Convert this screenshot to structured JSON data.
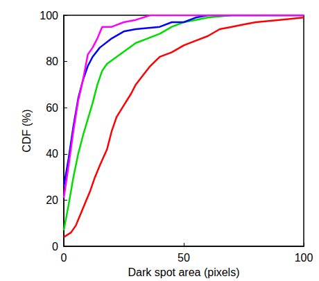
{
  "chart_data": {
    "type": "line",
    "x_label": "Dark spot area (pixels)",
    "y_label": "CDF (%)",
    "xlim": [
      0,
      100
    ],
    "xticks": [
      0,
      50,
      100
    ],
    "ylim": [
      0,
      100
    ],
    "yticks": [
      0,
      20,
      40,
      60,
      80,
      100
    ],
    "grid": false,
    "marker": "none",
    "line_style": "solid",
    "series": [
      {
        "color": "#ff0000",
        "x": [
          0,
          3,
          5,
          7,
          9,
          11,
          13,
          15,
          18,
          20,
          22,
          25,
          28,
          30,
          33,
          36,
          40,
          45,
          50,
          55,
          60,
          65,
          70,
          75,
          80,
          90,
          100
        ],
        "values": [
          4,
          6,
          9,
          14,
          19,
          24,
          30,
          35,
          42,
          50,
          56,
          61,
          66,
          70,
          74,
          78,
          82,
          84,
          87,
          89,
          91,
          94,
          95,
          96,
          97,
          98,
          99
        ]
      },
      {
        "color": "#00dd00",
        "x": [
          0,
          2,
          4,
          6,
          8,
          10,
          12,
          14,
          16,
          18,
          22,
          26,
          30,
          35,
          40,
          45,
          50,
          55,
          60,
          70,
          100
        ],
        "values": [
          7,
          18,
          30,
          40,
          48,
          55,
          62,
          70,
          76,
          79,
          82,
          85,
          88,
          90,
          92,
          95,
          97,
          98,
          99,
          100,
          100
        ]
      },
      {
        "color": "#0000ff",
        "x": [
          0,
          2,
          4,
          6,
          8,
          10,
          12,
          15,
          20,
          25,
          30,
          40,
          45,
          50,
          55,
          60,
          100
        ],
        "values": [
          26,
          38,
          52,
          64,
          72,
          78,
          82,
          86,
          90,
          93,
          94,
          95,
          97,
          97,
          99,
          100,
          100
        ]
      },
      {
        "color": "#ff00ff",
        "x": [
          0,
          2,
          4,
          6,
          8,
          10,
          12,
          14,
          16,
          20,
          25,
          30,
          36,
          100
        ],
        "values": [
          21,
          35,
          50,
          63,
          72,
          83,
          86,
          90,
          95,
          95,
          97,
          98,
          100,
          100
        ]
      }
    ]
  }
}
